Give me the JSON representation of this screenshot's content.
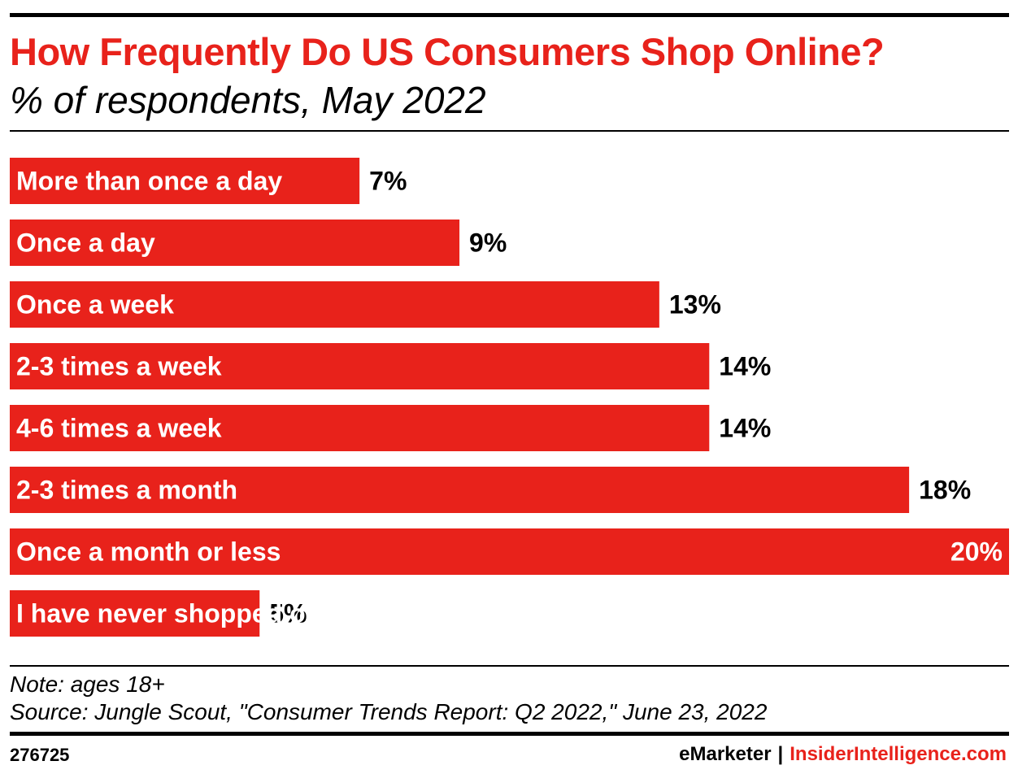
{
  "header": {
    "title": "How Frequently Do US Consumers Shop Online?",
    "subtitle": "% of respondents, May 2022"
  },
  "chart_data": {
    "type": "bar",
    "orientation": "horizontal",
    "title": "How Frequently Do US Consumers Shop Online?",
    "subtitle": "% of respondents, May 2022",
    "categories": [
      "More than once a day",
      "Once a day",
      "Once a week",
      "2-3 times a week",
      "4-6 times a week",
      "2-3 times a month",
      "Once a month or less",
      "I have never shopped online"
    ],
    "values": [
      7,
      9,
      13,
      14,
      14,
      18,
      20,
      5
    ],
    "value_labels": [
      "7%",
      "9%",
      "13%",
      "14%",
      "14%",
      "18%",
      "20%",
      "5%"
    ],
    "xlim": [
      0,
      20
    ],
    "unit": "%",
    "bar_color": "#e8221b",
    "grid": false,
    "legend": "none"
  },
  "footer": {
    "note": "Note: ages 18+",
    "source": "Source: Jungle Scout, \"Consumer Trends Report: Q2 2022,\" June 23, 2022",
    "chart_id": "276725",
    "brand_emarketer": "eMarketer",
    "brand_separator": "|",
    "brand_insider": "InsiderIntelligence.com"
  },
  "colors": {
    "accent": "#e8221b",
    "text": "#000000",
    "background": "#ffffff"
  }
}
